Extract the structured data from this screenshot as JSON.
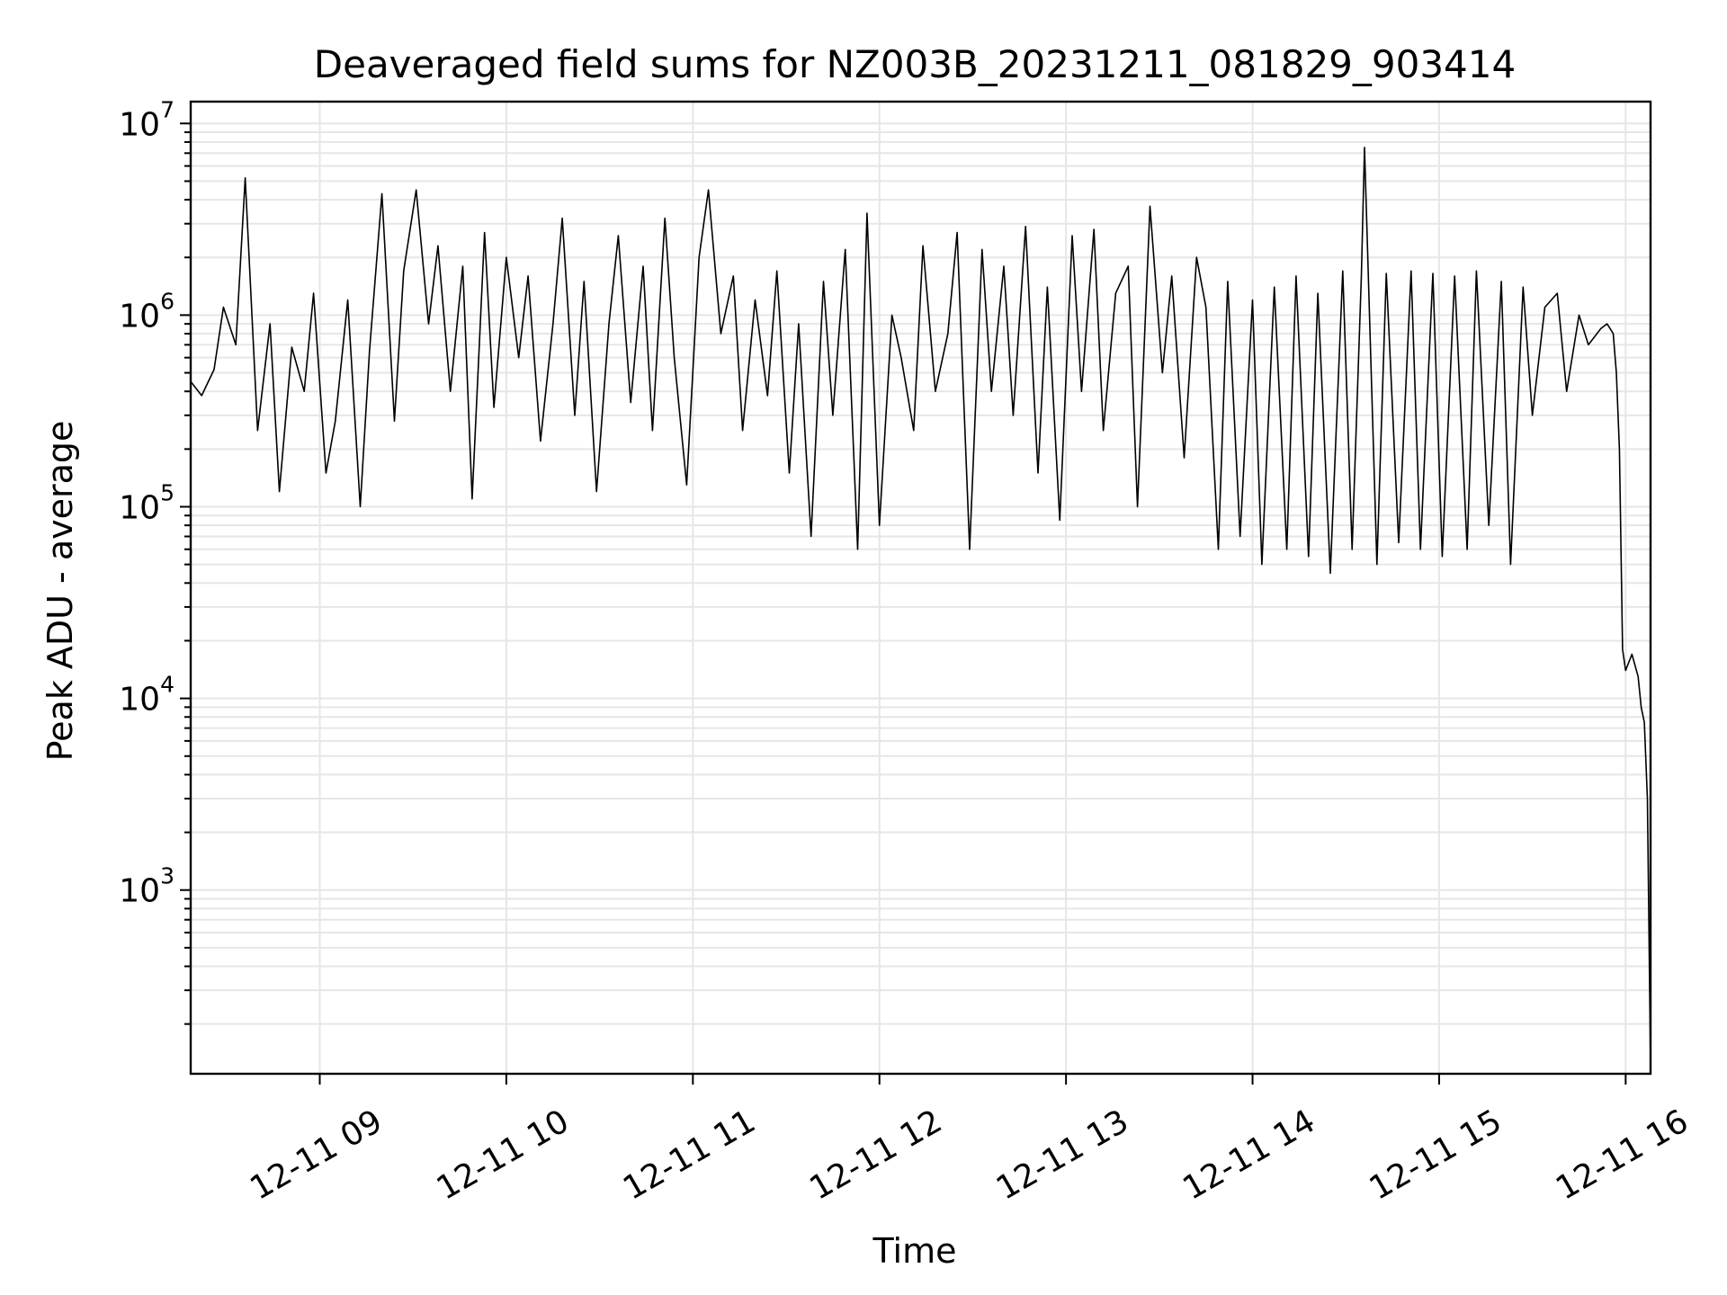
{
  "chart_data": {
    "type": "line",
    "title": "Deaveraged field sums for NZ003B_20231211_081829_903414",
    "xlabel": "Time",
    "ylabel": "Peak ADU - average",
    "yscale": "log",
    "ylim": [
      110,
      13000000
    ],
    "xlim": [
      "2023-12-11 08:18:29",
      "2023-12-11 16:08:00"
    ],
    "grid": true,
    "grid_which": "both",
    "line_color": "#000000",
    "grid_color": "#e6e6e6",
    "x_ticks": [
      {
        "value": "2023-12-11 09:00",
        "label": "12-11 09"
      },
      {
        "value": "2023-12-11 10:00",
        "label": "12-11 10"
      },
      {
        "value": "2023-12-11 11:00",
        "label": "12-11 11"
      },
      {
        "value": "2023-12-11 12:00",
        "label": "12-11 12"
      },
      {
        "value": "2023-12-11 13:00",
        "label": "12-11 13"
      },
      {
        "value": "2023-12-11 14:00",
        "label": "12-11 14"
      },
      {
        "value": "2023-12-11 15:00",
        "label": "12-11 15"
      },
      {
        "value": "2023-12-11 16:00",
        "label": "12-11 16"
      }
    ],
    "y_ticks": [
      {
        "value": 1000,
        "base": "10",
        "exp": "3"
      },
      {
        "value": 10000,
        "base": "10",
        "exp": "4"
      },
      {
        "value": 100000,
        "base": "10",
        "exp": "5"
      },
      {
        "value": 1000000,
        "base": "10",
        "exp": "6"
      },
      {
        "value": 10000000,
        "base": "10",
        "exp": "7"
      }
    ],
    "series": [
      {
        "x": [
          "2023-12-11 08:18:29",
          "2023-12-11 08:22",
          "2023-12-11 08:26",
          "2023-12-11 08:29",
          "2023-12-11 08:33",
          "2023-12-11 08:36",
          "2023-12-11 08:40",
          "2023-12-11 08:44",
          "2023-12-11 08:47",
          "2023-12-11 08:51",
          "2023-12-11 08:55",
          "2023-12-11 08:58",
          "2023-12-11 09:02",
          "2023-12-11 09:05",
          "2023-12-11 09:09",
          "2023-12-11 09:13",
          "2023-12-11 09:16",
          "2023-12-11 09:20",
          "2023-12-11 09:24",
          "2023-12-11 09:27",
          "2023-12-11 09:31",
          "2023-12-11 09:35",
          "2023-12-11 09:38",
          "2023-12-11 09:42",
          "2023-12-11 09:46",
          "2023-12-11 09:49",
          "2023-12-11 09:53",
          "2023-12-11 09:56",
          "2023-12-11 10:00",
          "2023-12-11 10:04",
          "2023-12-11 10:07",
          "2023-12-11 10:11",
          "2023-12-11 10:15",
          "2023-12-11 10:18",
          "2023-12-11 10:22",
          "2023-12-11 10:25",
          "2023-12-11 10:29",
          "2023-12-11 10:33",
          "2023-12-11 10:36",
          "2023-12-11 10:40",
          "2023-12-11 10:44",
          "2023-12-11 10:47",
          "2023-12-11 10:51",
          "2023-12-11 10:54",
          "2023-12-11 10:58",
          "2023-12-11 11:02",
          "2023-12-11 11:05",
          "2023-12-11 11:09",
          "2023-12-11 11:13",
          "2023-12-11 11:16",
          "2023-12-11 11:20",
          "2023-12-11 11:24",
          "2023-12-11 11:27",
          "2023-12-11 11:31",
          "2023-12-11 11:34",
          "2023-12-11 11:38",
          "2023-12-11 11:42",
          "2023-12-11 11:45",
          "2023-12-11 11:49",
          "2023-12-11 11:53",
          "2023-12-11 11:56",
          "2023-12-11 12:00",
          "2023-12-11 12:04",
          "2023-12-11 12:07",
          "2023-12-11 12:11",
          "2023-12-11 12:14",
          "2023-12-11 12:18",
          "2023-12-11 12:22",
          "2023-12-11 12:25",
          "2023-12-11 12:29",
          "2023-12-11 12:33",
          "2023-12-11 12:36",
          "2023-12-11 12:40",
          "2023-12-11 12:43",
          "2023-12-11 12:47",
          "2023-12-11 12:51",
          "2023-12-11 12:54",
          "2023-12-11 12:58",
          "2023-12-11 13:02",
          "2023-12-11 13:05",
          "2023-12-11 13:09",
          "2023-12-11 13:12",
          "2023-12-11 13:16",
          "2023-12-11 13:20",
          "2023-12-11 13:23",
          "2023-12-11 13:27",
          "2023-12-11 13:31",
          "2023-12-11 13:34",
          "2023-12-11 13:38",
          "2023-12-11 13:42",
          "2023-12-11 13:45",
          "2023-12-11 13:49",
          "2023-12-11 13:52",
          "2023-12-11 13:56",
          "2023-12-11 14:00",
          "2023-12-11 14:03",
          "2023-12-11 14:07",
          "2023-12-11 14:11",
          "2023-12-11 14:14",
          "2023-12-11 14:18",
          "2023-12-11 14:21",
          "2023-12-11 14:25",
          "2023-12-11 14:29",
          "2023-12-11 14:32",
          "2023-12-11 14:35",
          "2023-12-11 14:36",
          "2023-12-11 14:40",
          "2023-12-11 14:43",
          "2023-12-11 14:47",
          "2023-12-11 14:51",
          "2023-12-11 14:54",
          "2023-12-11 14:58",
          "2023-12-11 15:01",
          "2023-12-11 15:05",
          "2023-12-11 15:09",
          "2023-12-11 15:12",
          "2023-12-11 15:16",
          "2023-12-11 15:20",
          "2023-12-11 15:23",
          "2023-12-11 15:27",
          "2023-12-11 15:30",
          "2023-12-11 15:34",
          "2023-12-11 15:38",
          "2023-12-11 15:41",
          "2023-12-11 15:45",
          "2023-12-11 15:48",
          "2023-12-11 15:52",
          "2023-12-11 15:54",
          "2023-12-11 15:55",
          "2023-12-11 15:56",
          "2023-12-11 15:57",
          "2023-12-11 15:58",
          "2023-12-11 15:59",
          "2023-12-11 16:00",
          "2023-12-11 16:02",
          "2023-12-11 16:04",
          "2023-12-11 16:05",
          "2023-12-11 16:06",
          "2023-12-11 16:07",
          "2023-12-11 16:08"
        ],
        "y": [
          450000,
          380000,
          520000,
          1100000,
          700000,
          5200000,
          250000,
          900000,
          120000,
          680000,
          400000,
          1300000,
          150000,
          280000,
          1200000,
          100000,
          650000,
          4300000,
          280000,
          1700000,
          4500000,
          900000,
          2300000,
          400000,
          1800000,
          110000,
          2700000,
          330000,
          2000000,
          600000,
          1600000,
          220000,
          900000,
          3200000,
          300000,
          1500000,
          120000,
          900000,
          2600000,
          350000,
          1800000,
          250000,
          3200000,
          600000,
          130000,
          2000000,
          4500000,
          800000,
          1600000,
          250000,
          1200000,
          380000,
          1700000,
          150000,
          900000,
          70000,
          1500000,
          300000,
          2200000,
          60000,
          3400000,
          80000,
          1000000,
          600000,
          250000,
          2300000,
          400000,
          800000,
          2700000,
          60000,
          2200000,
          400000,
          1800000,
          300000,
          2900000,
          150000,
          1400000,
          85000,
          2600000,
          400000,
          2800000,
          250000,
          1300000,
          1800000,
          100000,
          3700000,
          500000,
          1600000,
          180000,
          2000000,
          1100000,
          60000,
          1500000,
          70000,
          1200000,
          50000,
          1400000,
          60000,
          1600000,
          55000,
          1300000,
          45000,
          1700000,
          60000,
          1600000,
          7500000,
          50000,
          1650000,
          65000,
          1700000,
          60000,
          1650000,
          55000,
          1600000,
          60000,
          1700000,
          80000,
          1500000,
          50000,
          1400000,
          300000,
          1100000,
          1300000,
          400000,
          1000000,
          700000,
          850000,
          900000,
          850000,
          800000,
          500000,
          200000,
          18000,
          14000,
          17000,
          13000,
          9000,
          7500,
          3000,
          120
        ]
      }
    ]
  }
}
